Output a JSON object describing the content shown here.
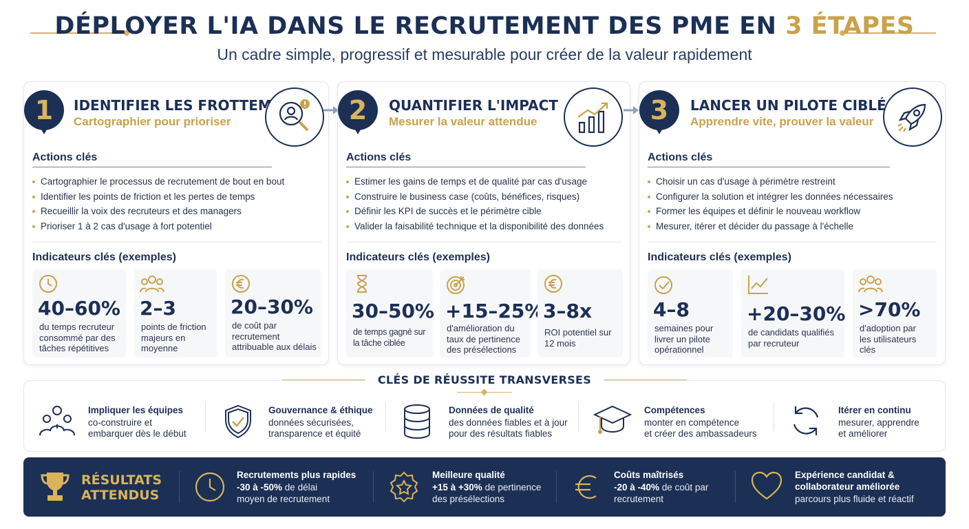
{
  "header": {
    "title_main": "DÉPLOYER L'IA DANS LE RECRUTEMENT DES PME EN",
    "title_accent": "3 ÉTAPES",
    "subtitle": "Un cadre simple, progressif et mesurable pour créer de la valeur rapidement"
  },
  "steps": [
    {
      "number": "1",
      "title": "IDENTIFIER LES FROTTEMENTS",
      "subtitle": "Cartographier pour prioriser",
      "icon": "magnifier-person-icon",
      "actions_label": "Actions clés",
      "actions": [
        "Cartographier le processus de recrutement de bout en bout",
        "Identifier les points de friction et les pertes de temps",
        "Recueillir la voix des recruteurs et des managers",
        "Prioriser 1 à 2 cas d'usage à fort potentiel"
      ],
      "indicators_label": "Indicateurs clés (exemples)",
      "kpis": [
        {
          "icon": "clock-icon",
          "value": "40–60%",
          "label": "du temps recruteur consommé par des tâches répétitives"
        },
        {
          "icon": "people-icon",
          "value": "2–3",
          "label": "points de friction majeurs en moyenne"
        },
        {
          "icon": "euro-icon",
          "value": "20–30%",
          "label": "de coût par recrutement attribuable aux délais"
        }
      ]
    },
    {
      "number": "2",
      "title": "QUANTIFIER L'IMPACT",
      "subtitle": "Mesurer la valeur attendue",
      "icon": "growth-chart-icon",
      "actions_label": "Actions clés",
      "actions": [
        "Estimer les gains de temps et de qualité par cas d'usage",
        "Construire le business case (coûts, bénéfices, risques)",
        "Définir les KPI de succès et le périmètre cible",
        "Valider la faisabilité technique et la disponibilité des données"
      ],
      "indicators_label": "Indicateurs clés (exemples)",
      "kpis": [
        {
          "icon": "hourglass-icon",
          "value": "30–50%",
          "label": "de temps gagné sur la tâche ciblée"
        },
        {
          "icon": "target-icon",
          "value": "+15–25%",
          "label": "d'amélioration du taux de pertinence des présélections"
        },
        {
          "icon": "euro-icon",
          "value": "3–8x",
          "label": "ROI potentiel sur 12 mois"
        }
      ]
    },
    {
      "number": "3",
      "title": "LANCER UN PILOTE CIBLÉ",
      "subtitle": "Apprendre vite, prouver la valeur",
      "icon": "rocket-icon",
      "actions_label": "Actions clés",
      "actions": [
        "Choisir un cas d'usage à périmètre restreint",
        "Configurer la solution et intégrer les données nécessaires",
        "Former les équipes et définir le nouveau workflow",
        "Mesurer, itérer et décider du passage à l'échelle"
      ],
      "indicators_label": "Indicateurs clés (exemples)",
      "kpis": [
        {
          "icon": "check-circle-icon",
          "value": "4–8",
          "label": "semaines pour livrer un pilote opérationnel"
        },
        {
          "icon": "trend-chart-icon",
          "value": "+20–30%",
          "label": "de candidats qualifiés par recruteur"
        },
        {
          "icon": "people-icon",
          "value": ">70%",
          "label": "d'adoption par les utilisateurs clés"
        }
      ]
    }
  ],
  "transverse": {
    "title": "CLÉS DE RÉUSSITE TRANSVERSES",
    "items": [
      {
        "icon": "team-icon",
        "title": "Impliquer les équipes",
        "line1": "co-construire et",
        "line2": "embarquer dès le début"
      },
      {
        "icon": "shield-check-icon",
        "title": "Gouvernance & éthique",
        "line1": "données sécurisées,",
        "line2": "transparence et équité"
      },
      {
        "icon": "database-icon",
        "title": "Données de qualité",
        "line1": "des données fiables et à jour",
        "line2": "pour des résultats fiables"
      },
      {
        "icon": "graduation-cap-icon",
        "title": "Compétences",
        "line1": "monter en compétence",
        "line2": "et créer des ambassadeurs"
      },
      {
        "icon": "refresh-icon",
        "title": "Itérer en continu",
        "line1": "mesurer, apprendre",
        "line2": "et améliorer"
      }
    ]
  },
  "results": {
    "title_line1": "RÉSULTATS",
    "title_line2": "ATTENDUS",
    "items": [
      {
        "icon": "clock-icon",
        "title": "Recrutements plus rapides",
        "highlight": "-30 à -50%",
        "rest": " de délai",
        "line3": "moyen de recrutement"
      },
      {
        "icon": "star-badge-icon",
        "title": "Meilleure qualité",
        "highlight": "+15 à +30%",
        "rest": " de pertinence",
        "line3": "des présélections"
      },
      {
        "icon": "euro-icon",
        "title": "Coûts maîtrisés",
        "highlight": "-20 à -40%",
        "rest": " de coût par",
        "line3": "recrutement"
      },
      {
        "icon": "heart-icon",
        "title": "Expérience candidat &",
        "title2": "collaborateur améliorée",
        "line3": "parcours plus fluide et réactif"
      }
    ]
  },
  "colors": {
    "navy": "#1c2f55",
    "gold": "#c9a24a"
  }
}
